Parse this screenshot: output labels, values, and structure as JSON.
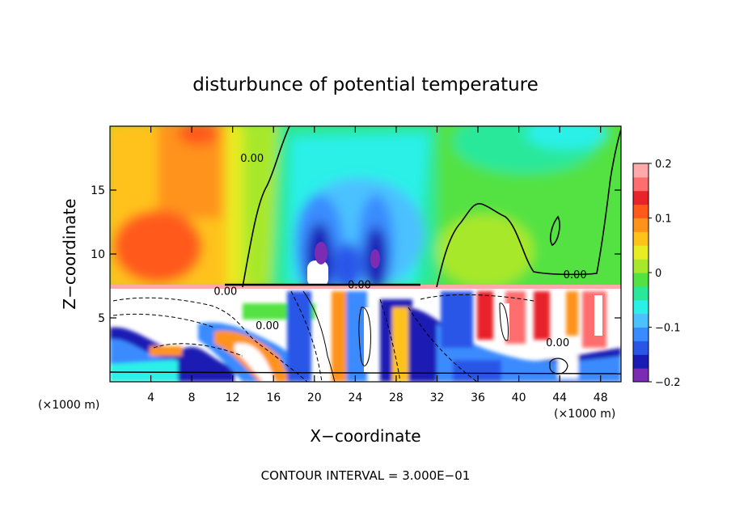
{
  "chart_data": {
    "type": "heatmap",
    "title": "disturbunce of potential temperature",
    "xlabel": "X−coordinate",
    "ylabel": "Z−coordinate",
    "x_unit_label": "(×1000 m)",
    "z_unit_label": "(×1000 m)",
    "xlim": [
      0,
      50
    ],
    "ylim": [
      0,
      20
    ],
    "x_ticks": [
      4,
      8,
      12,
      16,
      20,
      24,
      28,
      32,
      36,
      40,
      44,
      48
    ],
    "y_ticks": [
      5,
      10,
      15
    ],
    "colorbar": {
      "range": [
        -0.2,
        0.2
      ],
      "tick_labels": [
        "0.2",
        "0.1",
        "0",
        "−0.1",
        "−0.2"
      ],
      "tick_values": [
        0.2,
        0.1,
        0,
        -0.1,
        -0.2
      ],
      "colors": [
        "#7b2cb3",
        "#1a1ab5",
        "#2a56e8",
        "#3a8bff",
        "#4cc1ff",
        "#2af0e8",
        "#29e89a",
        "#52e242",
        "#a8e82c",
        "#e8ec24",
        "#ffc21a",
        "#ff931a",
        "#ff5a1a",
        "#e8242a",
        "#ff6e6e",
        "#ffaaaa"
      ]
    },
    "contour_labels": [
      {
        "text": "0.00",
        "x": 13.9,
        "z": 17.2
      },
      {
        "text": "0.00",
        "x": 11.3,
        "z": 6.8
      },
      {
        "text": "0.00",
        "x": 15.4,
        "z": 4.1
      },
      {
        "text": "0.00",
        "x": 24.4,
        "z": 7.3
      },
      {
        "text": "0.00",
        "x": 45.5,
        "z": 8.1
      },
      {
        "text": "0.00",
        "x": 43.8,
        "z": 2.8
      }
    ],
    "footer": "CONTOUR INTERVAL = 3.000E−01"
  }
}
